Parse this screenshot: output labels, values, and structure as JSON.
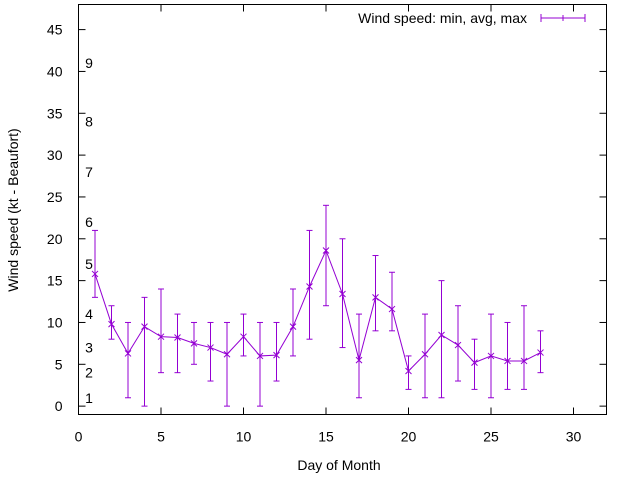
{
  "chart_data": {
    "type": "line",
    "title": "",
    "xlabel": "Day of Month",
    "ylabel": "Wind speed (kt - Beaufort)",
    "xlim": [
      0,
      32
    ],
    "ylim": [
      -1,
      48
    ],
    "xticks": [
      0,
      5,
      10,
      15,
      20,
      25,
      30
    ],
    "yticks": [
      0,
      5,
      10,
      15,
      20,
      25,
      30,
      35,
      40,
      45
    ],
    "grid": false,
    "legend": {
      "position": "top-right",
      "entries": [
        "Wind speed: min, avg, max"
      ]
    },
    "series": [
      {
        "name": "Wind speed: min, avg, max",
        "color": "#9400d3",
        "x": [
          1,
          2,
          3,
          4,
          5,
          6,
          7,
          8,
          9,
          10,
          11,
          12,
          13,
          14,
          15,
          16,
          17,
          18,
          19,
          20,
          21,
          22,
          23,
          24,
          25,
          26,
          27,
          28
        ],
        "avg": [
          15.8,
          9.8,
          6.3,
          9.5,
          8.3,
          8.2,
          7.5,
          7.0,
          6.2,
          8.3,
          6.0,
          6.1,
          9.5,
          14.3,
          18.6,
          13.4,
          5.5,
          13.0,
          11.6,
          4.2,
          6.2,
          8.5,
          7.3,
          5.2,
          6.0,
          5.4,
          5.4,
          6.4
        ],
        "min": [
          13,
          8,
          1,
          0,
          4,
          4,
          5,
          3,
          0,
          6,
          0,
          3,
          6,
          8,
          12,
          7,
          1,
          9,
          9,
          2,
          1,
          1,
          3,
          2,
          1,
          2,
          2,
          4
        ],
        "max": [
          21,
          12,
          10,
          13,
          14,
          11,
          10,
          10,
          10,
          11,
          10,
          10,
          14,
          21,
          24,
          20,
          11,
          18,
          16,
          6,
          11,
          15,
          12,
          8,
          11,
          10,
          12,
          9
        ]
      }
    ],
    "annotations": [
      {
        "text": "1",
        "y": 1
      },
      {
        "text": "2",
        "y": 4
      },
      {
        "text": "3",
        "y": 7
      },
      {
        "text": "4",
        "y": 11
      },
      {
        "text": "5",
        "y": 17
      },
      {
        "text": "6",
        "y": 22
      },
      {
        "text": "7",
        "y": 28
      },
      {
        "text": "8",
        "y": 34
      },
      {
        "text": "9",
        "y": 41
      }
    ]
  }
}
